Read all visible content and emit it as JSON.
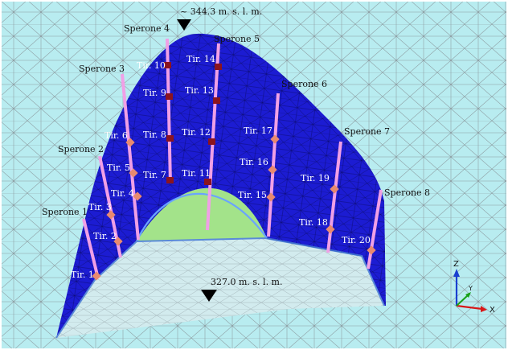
{
  "elevations": {
    "top": "~ 344.3 m. s. l. m.",
    "bottom": "327.0 m. s. l. m."
  },
  "spurs": [
    "Sperone 1",
    "Sperone 2",
    "Sperone 3",
    "Sperone 4",
    "Sperone 5",
    "Sperone 6",
    "Sperone 7",
    "Sperone 8"
  ],
  "tie_rods": [
    "Tir. 1",
    "Tir. 2",
    "Tir. 3",
    "Tir. 4",
    "Tir. 5",
    "Tir. 6",
    "Tir. 7",
    "Tir. 8",
    "Tir. 9",
    "Tir. 10",
    "Tir. 11",
    "Tir. 12",
    "Tir. 13",
    "Tir. 14",
    "Tir. 15",
    "Tir. 16",
    "Tir. 17",
    "Tir. 18",
    "Tir. 19",
    "Tir. 20"
  ],
  "axes": {
    "x": "X",
    "y": "Y",
    "z": "Z"
  },
  "colors": {
    "background": "#b8ecf0",
    "vault_surface": "#1c1cd2",
    "mesh_line": "#7d8f95",
    "spur_rib": "#f0a0e6",
    "anchor_marker": "#e88a70",
    "anchor_marker_dark": "#8a1420",
    "floor": "#d2ebee",
    "inner_green": "#a3e38a"
  }
}
